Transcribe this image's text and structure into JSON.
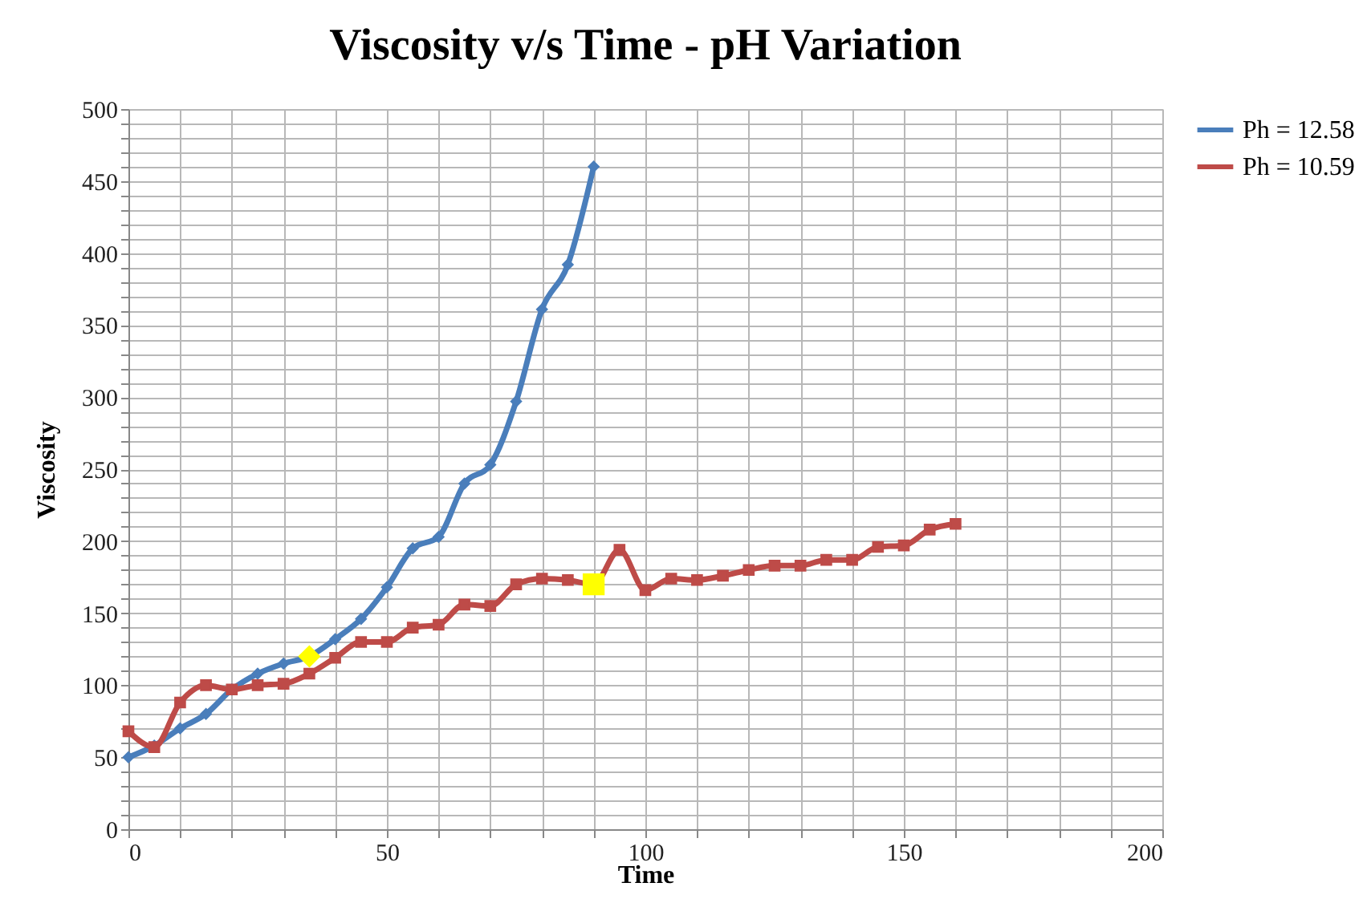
{
  "chart_data": {
    "type": "line",
    "title": "Viscosity v/s Time - pH Variation",
    "xlabel": "Time",
    "ylabel": "Viscosity",
    "xlim": [
      0,
      200
    ],
    "ylim": [
      0,
      500
    ],
    "xticks": [
      0,
      {
        "value": 10,
        "label": null
      },
      {
        "value": 20,
        "label": null
      },
      {
        "value": 30,
        "label": null
      },
      {
        "value": 40,
        "label": null
      },
      50,
      {
        "value": 60,
        "label": null
      },
      {
        "value": 70,
        "label": null
      },
      {
        "value": 80,
        "label": null
      },
      {
        "value": 90,
        "label": null
      },
      100,
      {
        "value": 110,
        "label": null
      },
      {
        "value": 120,
        "label": null
      },
      {
        "value": 130,
        "label": null
      },
      {
        "value": 140,
        "label": null
      },
      150,
      {
        "value": 160,
        "label": null
      },
      {
        "value": 170,
        "label": null
      },
      {
        "value": 180,
        "label": null
      },
      {
        "value": 190,
        "label": null
      },
      200
    ],
    "yticks": [
      0,
      {
        "value": 10,
        "label": null
      },
      {
        "value": 20,
        "label": null
      },
      {
        "value": 30,
        "label": null
      },
      {
        "value": 40,
        "label": null
      },
      50,
      {
        "value": 60,
        "label": null
      },
      {
        "value": 70,
        "label": null
      },
      {
        "value": 80,
        "label": null
      },
      {
        "value": 90,
        "label": null
      },
      100,
      {
        "value": 110,
        "label": null
      },
      {
        "value": 120,
        "label": null
      },
      {
        "value": 130,
        "label": null
      },
      {
        "value": 140,
        "label": null
      },
      150,
      {
        "value": 160,
        "label": null
      },
      {
        "value": 170,
        "label": null
      },
      {
        "value": 180,
        "label": null
      },
      {
        "value": 190,
        "label": null
      },
      200,
      {
        "value": 210,
        "label": null
      },
      {
        "value": 220,
        "label": null
      },
      {
        "value": 230,
        "label": null
      },
      {
        "value": 240,
        "label": null
      },
      250,
      {
        "value": 260,
        "label": null
      },
      {
        "value": 270,
        "label": null
      },
      {
        "value": 280,
        "label": null
      },
      {
        "value": 290,
        "label": null
      },
      300,
      {
        "value": 310,
        "label": null
      },
      {
        "value": 320,
        "label": null
      },
      {
        "value": 330,
        "label": null
      },
      {
        "value": 340,
        "label": null
      },
      350,
      {
        "value": 360,
        "label": null
      },
      {
        "value": 370,
        "label": null
      },
      {
        "value": 380,
        "label": null
      },
      {
        "value": 390,
        "label": null
      },
      400,
      {
        "value": 410,
        "label": null
      },
      {
        "value": 420,
        "label": null
      },
      {
        "value": 430,
        "label": null
      },
      {
        "value": 440,
        "label": null
      },
      450,
      {
        "value": 460,
        "label": null
      },
      {
        "value": 470,
        "label": null
      },
      {
        "value": 480,
        "label": null
      },
      {
        "value": 490,
        "label": null
      },
      500
    ],
    "grid": true,
    "legend": "right",
    "line_style": "solid",
    "series": [
      {
        "name": "Ph = 12.58",
        "color": "#4a7ebb",
        "marker": "diamond",
        "x": [
          0,
          5,
          10,
          15,
          20,
          25,
          30,
          35,
          40,
          45,
          50,
          55,
          60,
          65,
          70,
          75,
          80,
          85,
          90
        ],
        "values": [
          50,
          58,
          70,
          80,
          97,
          108,
          115,
          120,
          132,
          146,
          168,
          195,
          203,
          240,
          253,
          297,
          361,
          392,
          460
        ],
        "colors": [
          "#4a7ebb",
          "#4a7ebb",
          "#4a7ebb",
          "#4a7ebb",
          "#4a7ebb",
          "#4a7ebb",
          "#4a7ebb",
          "#ffff00",
          "#4a7ebb",
          "#4a7ebb",
          "#4a7ebb",
          "#4a7ebb",
          "#4a7ebb",
          "#4a7ebb",
          "#4a7ebb",
          "#4a7ebb",
          "#4a7ebb",
          "#4a7ebb",
          "#4a7ebb"
        ]
      },
      {
        "name": "Ph = 10.59",
        "color": "#be4b48",
        "marker": "square",
        "x": [
          0,
          5,
          10,
          15,
          20,
          25,
          30,
          35,
          40,
          45,
          50,
          55,
          60,
          65,
          70,
          75,
          80,
          85,
          90,
          95,
          100,
          105,
          110,
          115,
          120,
          125,
          130,
          135,
          140,
          145,
          150,
          155,
          160
        ],
        "values": [
          68,
          57,
          88,
          100,
          97,
          100,
          101,
          108,
          119,
          130,
          130,
          140,
          142,
          156,
          155,
          170,
          174,
          173,
          170,
          194,
          166,
          174,
          173,
          176,
          180,
          183,
          183,
          187,
          187,
          196,
          197,
          208,
          212
        ],
        "colors": [
          "#be4b48",
          "#be4b48",
          "#be4b48",
          "#be4b48",
          "#be4b48",
          "#be4b48",
          "#be4b48",
          "#be4b48",
          "#be4b48",
          "#be4b48",
          "#be4b48",
          "#be4b48",
          "#be4b48",
          "#be4b48",
          "#be4b48",
          "#be4b48",
          "#be4b48",
          "#be4b48",
          "#ffff00",
          "#be4b48",
          "#be4b48",
          "#be4b48",
          "#be4b48",
          "#be4b48",
          "#be4b48",
          "#be4b48",
          "#be4b48",
          "#be4b48",
          "#be4b48",
          "#be4b48",
          "#be4b48",
          "#be4b48",
          "#be4b48"
        ]
      }
    ]
  }
}
